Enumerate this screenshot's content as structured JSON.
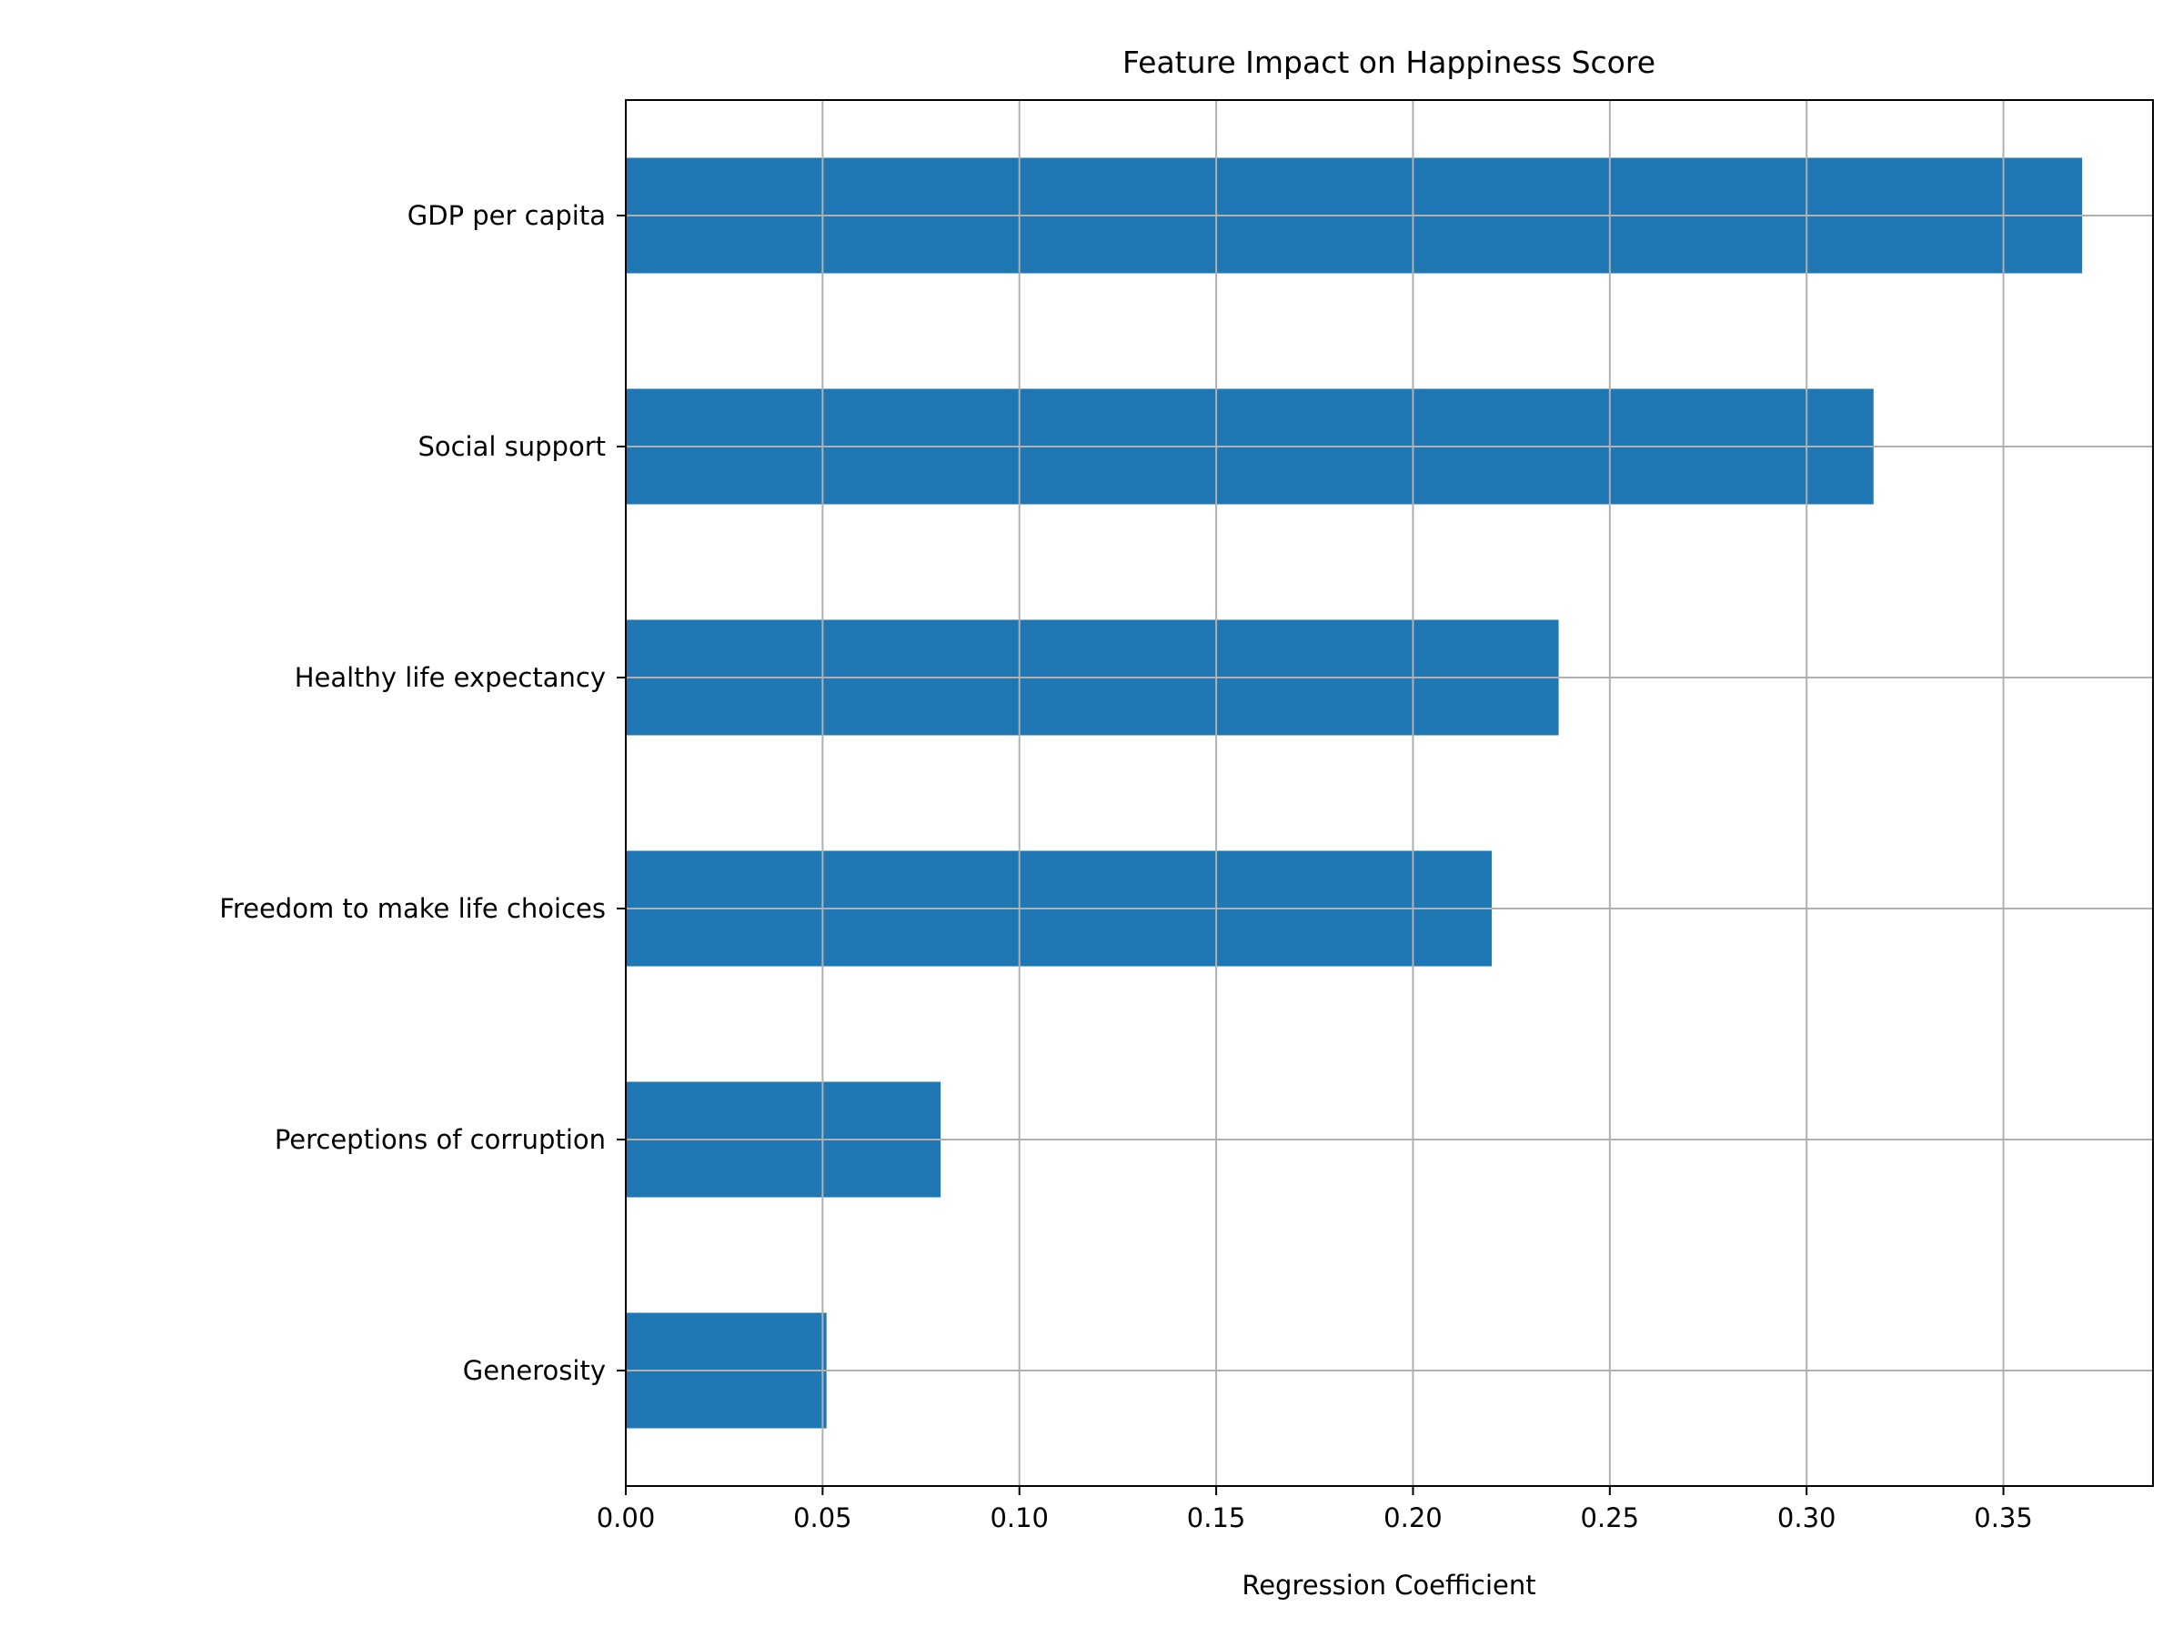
{
  "chart_data": {
    "type": "bar",
    "orientation": "horizontal",
    "title": "Feature Impact on Happiness Score",
    "xlabel": "Regression Coefficient",
    "ylabel": "",
    "categories": [
      "GDP per capita",
      "Social support",
      "Healthy life expectancy",
      "Freedom to make life choices",
      "Perceptions of corruption",
      "Generosity"
    ],
    "values": [
      0.37,
      0.317,
      0.237,
      0.22,
      0.08,
      0.051
    ],
    "xlim": [
      0,
      0.388
    ],
    "xticks": [
      "0.00",
      "0.05",
      "0.10",
      "0.15",
      "0.20",
      "0.25",
      "0.30",
      "0.35"
    ],
    "grid": true,
    "legend": "none",
    "bar_color": "#1f77b4",
    "grid_color": "#b0b0b0"
  }
}
